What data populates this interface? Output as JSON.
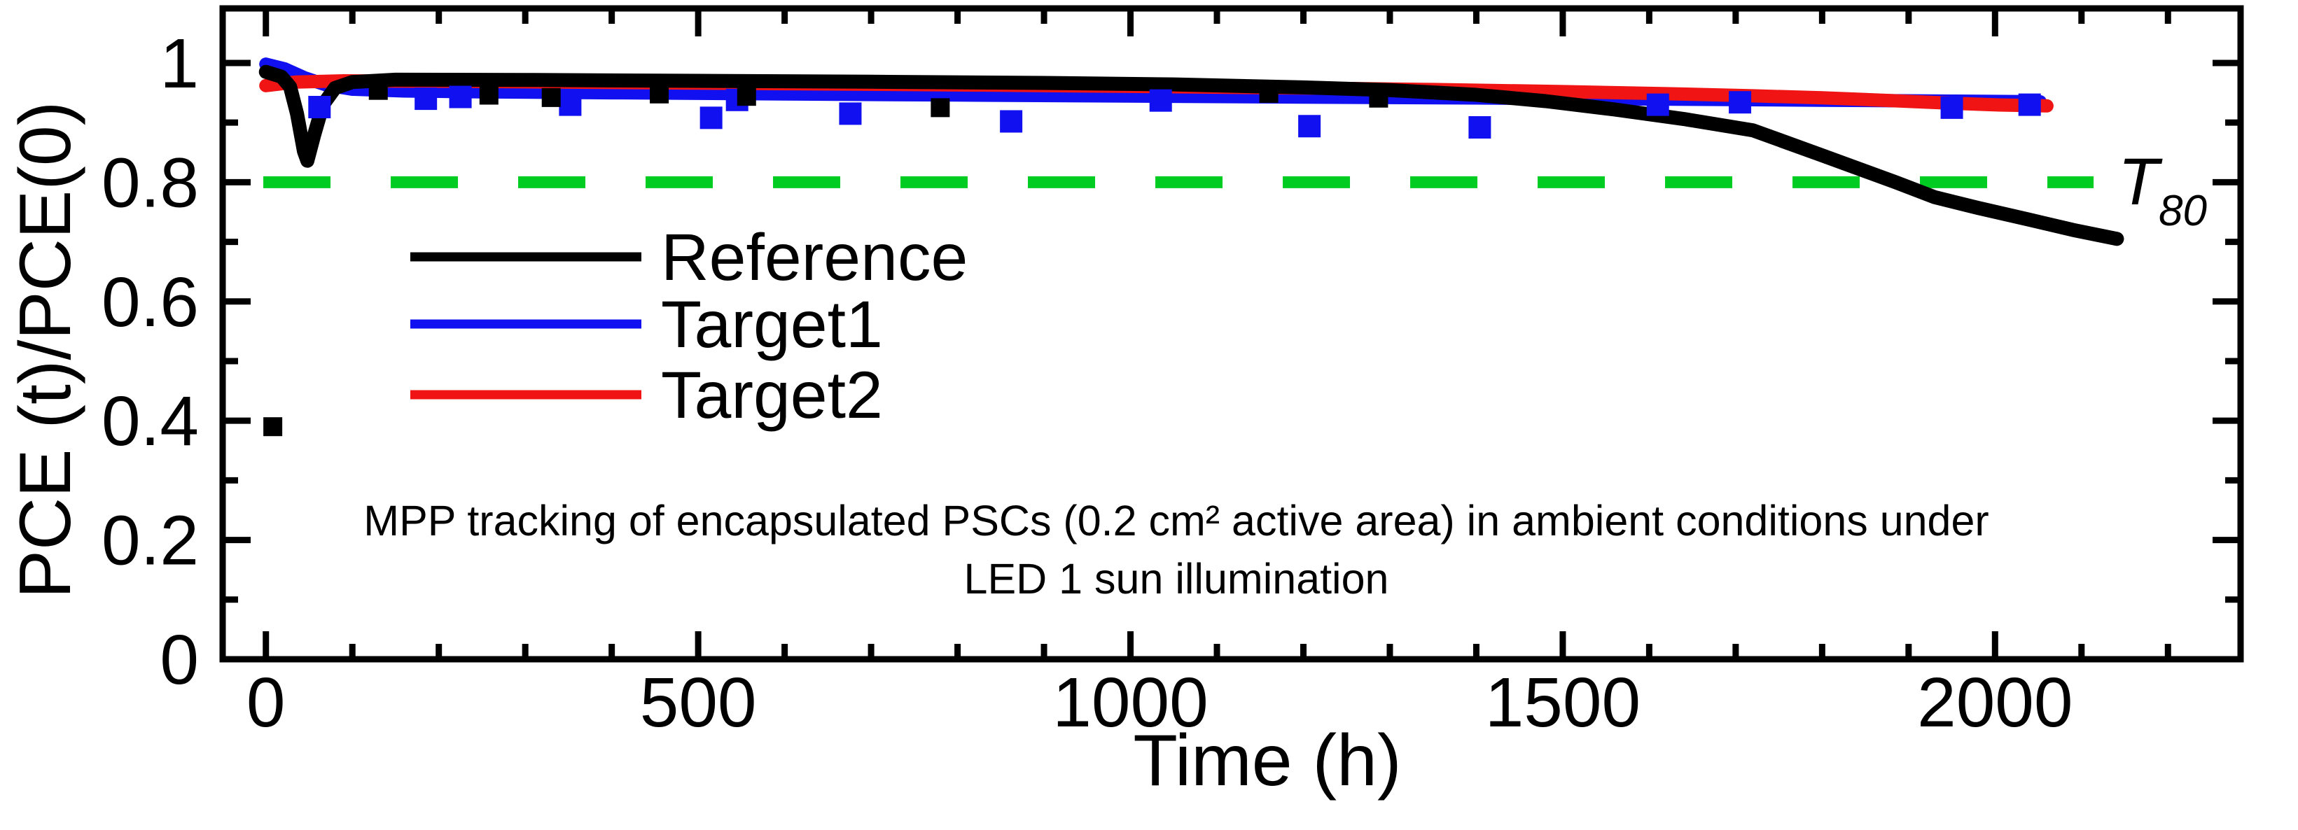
{
  "chart_data": {
    "type": "line",
    "title": "",
    "grid": false,
    "legend_position": "upper-left-inside",
    "x_axis": {
      "label": "Time (h)",
      "range": [
        -50,
        2284
      ],
      "major_ticks": [
        0,
        500,
        1000,
        1500,
        2000
      ],
      "tick_labels": [
        "0",
        "500",
        "1000",
        "1500",
        "2000"
      ],
      "minor_tick_step": 100
    },
    "y_axis": {
      "label": "PCE (t)/PCE(0)",
      "range": [
        0,
        1.0915
      ],
      "major_ticks": [
        0,
        0.2,
        0.4,
        0.6,
        0.8,
        1
      ],
      "tick_labels": [
        "0",
        "0.2",
        "0.4",
        "0.6",
        "0.8",
        "1"
      ],
      "minor_ticks": [
        0.1,
        0.3,
        0.5,
        0.7,
        0.9
      ]
    },
    "series": [
      {
        "name": "Target1",
        "color": "#1010f0",
        "width": 19,
        "points": [
          [
            0,
            0.998
          ],
          [
            22,
            0.99
          ],
          [
            45,
            0.975
          ],
          [
            70,
            0.963
          ],
          [
            100,
            0.956
          ],
          [
            160,
            0.953
          ],
          [
            250,
            0.9515
          ],
          [
            400,
            0.95
          ],
          [
            600,
            0.948
          ],
          [
            800,
            0.9462
          ],
          [
            1000,
            0.9445
          ],
          [
            1200,
            0.9428
          ],
          [
            1400,
            0.9412
          ],
          [
            1600,
            0.9395
          ],
          [
            1800,
            0.9375
          ],
          [
            1950,
            0.936
          ],
          [
            2052,
            0.935
          ]
        ]
      },
      {
        "name": "Target2",
        "color": "#f01414",
        "width": 19,
        "points": [
          [
            0,
            0.962
          ],
          [
            35,
            0.968
          ],
          [
            90,
            0.97
          ],
          [
            200,
            0.9695
          ],
          [
            400,
            0.9672
          ],
          [
            600,
            0.9652
          ],
          [
            800,
            0.9632
          ],
          [
            1000,
            0.9608
          ],
          [
            1200,
            0.958
          ],
          [
            1350,
            0.9555
          ],
          [
            1500,
            0.952
          ],
          [
            1620,
            0.9485
          ],
          [
            1720,
            0.945
          ],
          [
            1800,
            0.9415
          ],
          [
            1870,
            0.9375
          ],
          [
            1950,
            0.9325
          ],
          [
            2005,
            0.9295
          ],
          [
            2060,
            0.928
          ]
        ]
      },
      {
        "name": "Reference",
        "color": "#000000",
        "width": 20,
        "points": [
          [
            0,
            0.985
          ],
          [
            18,
            0.977
          ],
          [
            28,
            0.96
          ],
          [
            36,
            0.915
          ],
          [
            44,
            0.852
          ],
          [
            48,
            0.836
          ],
          [
            56,
            0.88
          ],
          [
            66,
            0.93
          ],
          [
            80,
            0.958
          ],
          [
            100,
            0.968
          ],
          [
            150,
            0.972
          ],
          [
            300,
            0.9715
          ],
          [
            500,
            0.97
          ],
          [
            700,
            0.9685
          ],
          [
            900,
            0.9665
          ],
          [
            1050,
            0.964
          ],
          [
            1200,
            0.959
          ],
          [
            1300,
            0.9545
          ],
          [
            1400,
            0.9465
          ],
          [
            1480,
            0.936
          ],
          [
            1560,
            0.922
          ],
          [
            1640,
            0.906
          ],
          [
            1720,
            0.887
          ],
          [
            1800,
            0.845
          ],
          [
            1885,
            0.8
          ],
          [
            1930,
            0.775
          ],
          [
            1980,
            0.757
          ],
          [
            2040,
            0.737
          ],
          [
            2090,
            0.72
          ],
          [
            2141,
            0.705
          ]
        ]
      }
    ],
    "outliers": [
      {
        "series": "Target1",
        "color": "#1010f0",
        "marker": "square",
        "size": 32,
        "points": [
          [
            62,
            0.926
          ],
          [
            185,
            0.94
          ],
          [
            225,
            0.943
          ],
          [
            352,
            0.93
          ],
          [
            515,
            0.908
          ],
          [
            545,
            0.938
          ],
          [
            676,
            0.915
          ],
          [
            862,
            0.902
          ],
          [
            1035,
            0.937
          ],
          [
            1207,
            0.894
          ],
          [
            1404,
            0.892
          ],
          [
            1610,
            0.93
          ],
          [
            1705,
            0.934
          ],
          [
            1950,
            0.925
          ],
          [
            2040,
            0.93
          ]
        ]
      },
      {
        "series": "Reference",
        "color": "#000000",
        "marker": "square",
        "size": 27,
        "points": [
          [
            8,
            0.39
          ],
          [
            130,
            0.954
          ],
          [
            258,
            0.946
          ],
          [
            330,
            0.942
          ],
          [
            455,
            0.948
          ],
          [
            556,
            0.944
          ],
          [
            780,
            0.925
          ],
          [
            1160,
            0.949
          ],
          [
            1287,
            0.941
          ]
        ]
      }
    ],
    "threshold_line": {
      "value": 0.8,
      "color": "#00cc22",
      "style": "dashed",
      "dash": [
        96,
        86
      ],
      "x_range": [
        -3,
        2114
      ],
      "label": "T",
      "label_subscript": "80"
    },
    "annotation": {
      "line1": "MPP tracking of encapsulated PSCs (0.2 cm² active area) in ambient conditions under",
      "line2": "LED 1 sun illumination"
    }
  },
  "legend": {
    "entries": [
      {
        "label": "Reference",
        "color": "#000000"
      },
      {
        "label": "Target1",
        "color": "#1010f0"
      },
      {
        "label": "Target2",
        "color": "#f01414"
      }
    ]
  }
}
